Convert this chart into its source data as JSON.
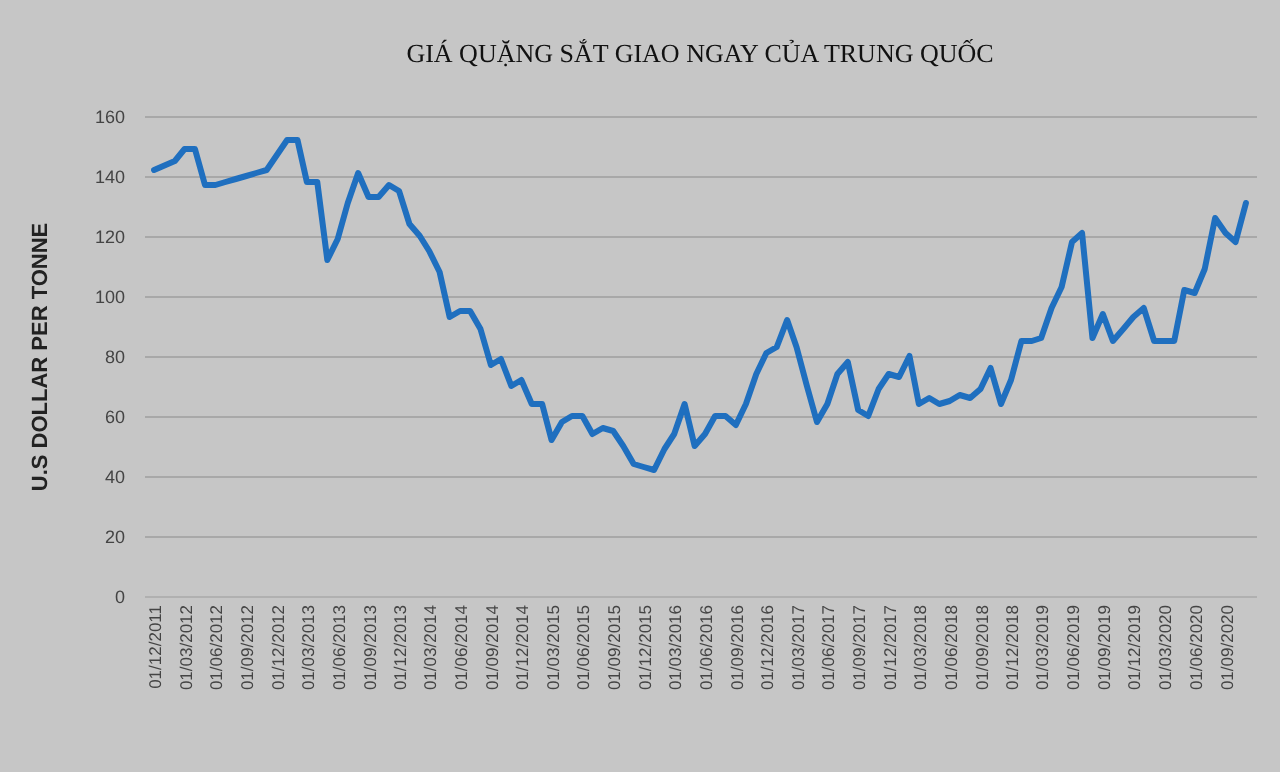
{
  "chart_data": {
    "type": "line",
    "title": "GIÁ QUẶNG SẮT GIAO NGAY CỦA TRUNG QUỐC",
    "ylabel": "U.S DOLLAR PER TONNE",
    "x": [
      "2011-12",
      "2012-02",
      "2012-03",
      "2012-04",
      "2012-05",
      "2012-06",
      "2012-07",
      "2012-08",
      "2012-09",
      "2012-10",
      "2012-11",
      "2013-01",
      "2013-02",
      "2013-03",
      "2013-04",
      "2013-05",
      "2013-06",
      "2013-07",
      "2013-08",
      "2013-09",
      "2013-10",
      "2013-11",
      "2013-12",
      "2014-01",
      "2014-02",
      "2014-03",
      "2014-04",
      "2014-05",
      "2014-06",
      "2014-07",
      "2014-08",
      "2014-09",
      "2014-10",
      "2014-11",
      "2014-12",
      "2015-01",
      "2015-02",
      "2015-03",
      "2015-04",
      "2015-05",
      "2015-06",
      "2015-07",
      "2015-08",
      "2015-09",
      "2015-10",
      "2015-11",
      "2015-12",
      "2016-01",
      "2016-02",
      "2016-03",
      "2016-04",
      "2016-05",
      "2016-06",
      "2016-07",
      "2016-08",
      "2016-09",
      "2016-10",
      "2016-11",
      "2016-12",
      "2017-01",
      "2017-02",
      "2017-03",
      "2017-04",
      "2017-05",
      "2017-06",
      "2017-07",
      "2017-08",
      "2017-09",
      "2017-10",
      "2017-11",
      "2017-12",
      "2018-01",
      "2018-02",
      "2018-03",
      "2018-04",
      "2018-05",
      "2018-06",
      "2018-07",
      "2018-08",
      "2018-09",
      "2018-10",
      "2018-11",
      "2018-12",
      "2019-01",
      "2019-02",
      "2019-03",
      "2019-04",
      "2019-05",
      "2019-06",
      "2019-07",
      "2019-08",
      "2019-09",
      "2019-10",
      "2019-11",
      "2019-12",
      "2020-01",
      "2020-02",
      "2020-03",
      "2020-04",
      "2020-05",
      "2020-06",
      "2020-07",
      "2020-08",
      "2020-09",
      "2020-10",
      "2020-11"
    ],
    "series": [
      {
        "color": "#1f6fbf",
        "values": [
          142,
          145,
          149,
          149,
          137,
          137,
          138,
          139,
          140,
          141,
          142,
          152,
          152,
          138,
          138,
          112,
          119,
          131,
          141,
          133,
          133,
          137,
          135,
          124,
          120,
          115,
          108,
          93,
          95,
          95,
          89,
          77,
          79,
          70,
          72,
          64,
          64,
          52,
          58,
          60,
          60,
          54,
          56,
          55,
          50,
          44,
          43,
          42,
          49,
          54,
          64,
          50,
          54,
          60,
          60,
          57,
          64,
          74,
          81,
          83,
          92,
          83,
          70,
          58,
          64,
          74,
          78,
          62,
          60,
          69,
          74,
          73,
          80,
          64,
          66,
          64,
          65,
          67,
          66,
          69,
          76,
          64,
          72,
          85,
          85,
          86,
          96,
          103,
          118,
          121,
          86,
          94,
          85,
          89,
          93,
          96,
          85,
          85,
          85,
          102,
          101,
          109,
          126,
          121,
          118,
          131
        ]
      }
    ],
    "xlim": [
      "2011-11",
      "2020-12"
    ],
    "xticks": [
      {
        "value": "2011-12",
        "label": "01/12/2011"
      },
      {
        "value": "2012-03",
        "label": "01/03/2012"
      },
      {
        "value": "2012-06",
        "label": "01/06/2012"
      },
      {
        "value": "2012-09",
        "label": "01/09/2012"
      },
      {
        "value": "2012-12",
        "label": "01/12/2012"
      },
      {
        "value": "2013-03",
        "label": "01/03/2013"
      },
      {
        "value": "2013-06",
        "label": "01/06/2013"
      },
      {
        "value": "2013-09",
        "label": "01/09/2013"
      },
      {
        "value": "2013-12",
        "label": "01/12/2013"
      },
      {
        "value": "2014-03",
        "label": "01/03/2014"
      },
      {
        "value": "2014-06",
        "label": "01/06/2014"
      },
      {
        "value": "2014-09",
        "label": "01/09/2014"
      },
      {
        "value": "2014-12",
        "label": "01/12/2014"
      },
      {
        "value": "2015-03",
        "label": "01/03/2015"
      },
      {
        "value": "2015-06",
        "label": "01/06/2015"
      },
      {
        "value": "2015-09",
        "label": "01/09/2015"
      },
      {
        "value": "2015-12",
        "label": "01/12/2015"
      },
      {
        "value": "2016-03",
        "label": "01/03/2016"
      },
      {
        "value": "2016-06",
        "label": "01/06/2016"
      },
      {
        "value": "2016-09",
        "label": "01/09/2016"
      },
      {
        "value": "2016-12",
        "label": "01/12/2016"
      },
      {
        "value": "2017-03",
        "label": "01/03/2017"
      },
      {
        "value": "2017-06",
        "label": "01/06/2017"
      },
      {
        "value": "2017-09",
        "label": "01/09/2017"
      },
      {
        "value": "2017-12",
        "label": "01/12/2017"
      },
      {
        "value": "2018-03",
        "label": "01/03/2018"
      },
      {
        "value": "2018-06",
        "label": "01/06/2018"
      },
      {
        "value": "2018-09",
        "label": "01/09/2018"
      },
      {
        "value": "2018-12",
        "label": "01/12/2018"
      },
      {
        "value": "2019-03",
        "label": "01/03/2019"
      },
      {
        "value": "2019-06",
        "label": "01/06/2019"
      },
      {
        "value": "2019-09",
        "label": "01/09/2019"
      },
      {
        "value": "2019-12",
        "label": "01/12/2019"
      },
      {
        "value": "2020-03",
        "label": "01/03/2020"
      },
      {
        "value": "2020-06",
        "label": "01/06/2020"
      },
      {
        "value": "2020-09",
        "label": "01/09/2020"
      }
    ],
    "ylim": [
      0,
      160
    ],
    "yticks": [
      0,
      20,
      40,
      60,
      80,
      100,
      120,
      140,
      160
    ],
    "grid": "y",
    "line_style": "solid",
    "marker": "none"
  }
}
